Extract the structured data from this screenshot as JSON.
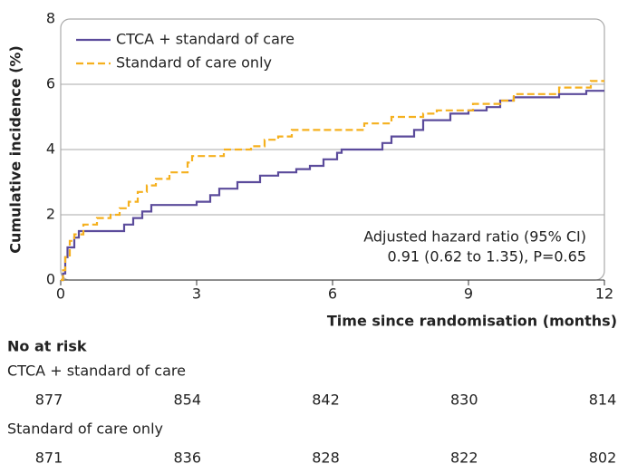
{
  "chart_data": {
    "type": "step",
    "xlabel": "Time since randomisation (months)",
    "ylabel": "Cumulative incidence (%)",
    "xlim": [
      0,
      12
    ],
    "xticks": [
      0,
      3,
      6,
      9,
      12
    ],
    "ylim": [
      0,
      8
    ],
    "yticks": [
      0,
      2,
      4,
      6,
      8
    ],
    "grid": true,
    "legend": "upper left",
    "annotation": [
      "Adjusted hazard ratio (95% CI)",
      "0.91 (0.62 to 1.35), P=0.65"
    ],
    "series": [
      {
        "name": "CTCA + standard of care",
        "color": "#5b4b9b",
        "dashed": false,
        "x": [
          0,
          0.05,
          0.1,
          0.15,
          0.3,
          0.4,
          1.4,
          1.6,
          1.8,
          2.0,
          3.0,
          3.3,
          3.5,
          3.9,
          4.4,
          4.8,
          5.2,
          5.5,
          5.8,
          6.1,
          6.2,
          7.1,
          7.3,
          7.8,
          8.0,
          8.6,
          9.0,
          9.4,
          9.7,
          10.0,
          11.0,
          11.6,
          12
        ],
        "values": [
          0,
          0.2,
          0.7,
          1.0,
          1.3,
          1.5,
          1.7,
          1.9,
          2.1,
          2.3,
          2.4,
          2.6,
          2.8,
          3.0,
          3.2,
          3.3,
          3.4,
          3.5,
          3.7,
          3.9,
          4.0,
          4.2,
          4.4,
          4.6,
          4.9,
          5.1,
          5.2,
          5.3,
          5.5,
          5.6,
          5.7,
          5.8,
          5.8
        ]
      },
      {
        "name": "Standard of care only",
        "color": "#f5b01e",
        "dashed": true,
        "x": [
          0,
          0.05,
          0.1,
          0.2,
          0.3,
          0.5,
          0.8,
          1.1,
          1.3,
          1.5,
          1.7,
          1.9,
          2.1,
          2.4,
          2.8,
          2.9,
          3.6,
          4.2,
          4.5,
          4.8,
          5.1,
          6.7,
          7.3,
          8.0,
          8.3,
          9.1,
          9.7,
          10.0,
          11.0,
          11.7,
          12
        ],
        "values": [
          0,
          0.3,
          0.7,
          1.2,
          1.4,
          1.7,
          1.9,
          2.0,
          2.2,
          2.4,
          2.7,
          2.9,
          3.1,
          3.3,
          3.6,
          3.8,
          4.0,
          4.1,
          4.3,
          4.4,
          4.6,
          4.8,
          5.0,
          5.1,
          5.2,
          5.4,
          5.5,
          5.7,
          5.9,
          6.1,
          6.1
        ]
      }
    ],
    "risk_table": {
      "title": "No at risk",
      "rows": [
        {
          "name": "CTCA + standard of care",
          "values": [
            877,
            854,
            842,
            830,
            814
          ]
        },
        {
          "name": "Standard of care only",
          "values": [
            871,
            836,
            828,
            822,
            802
          ]
        }
      ]
    }
  }
}
